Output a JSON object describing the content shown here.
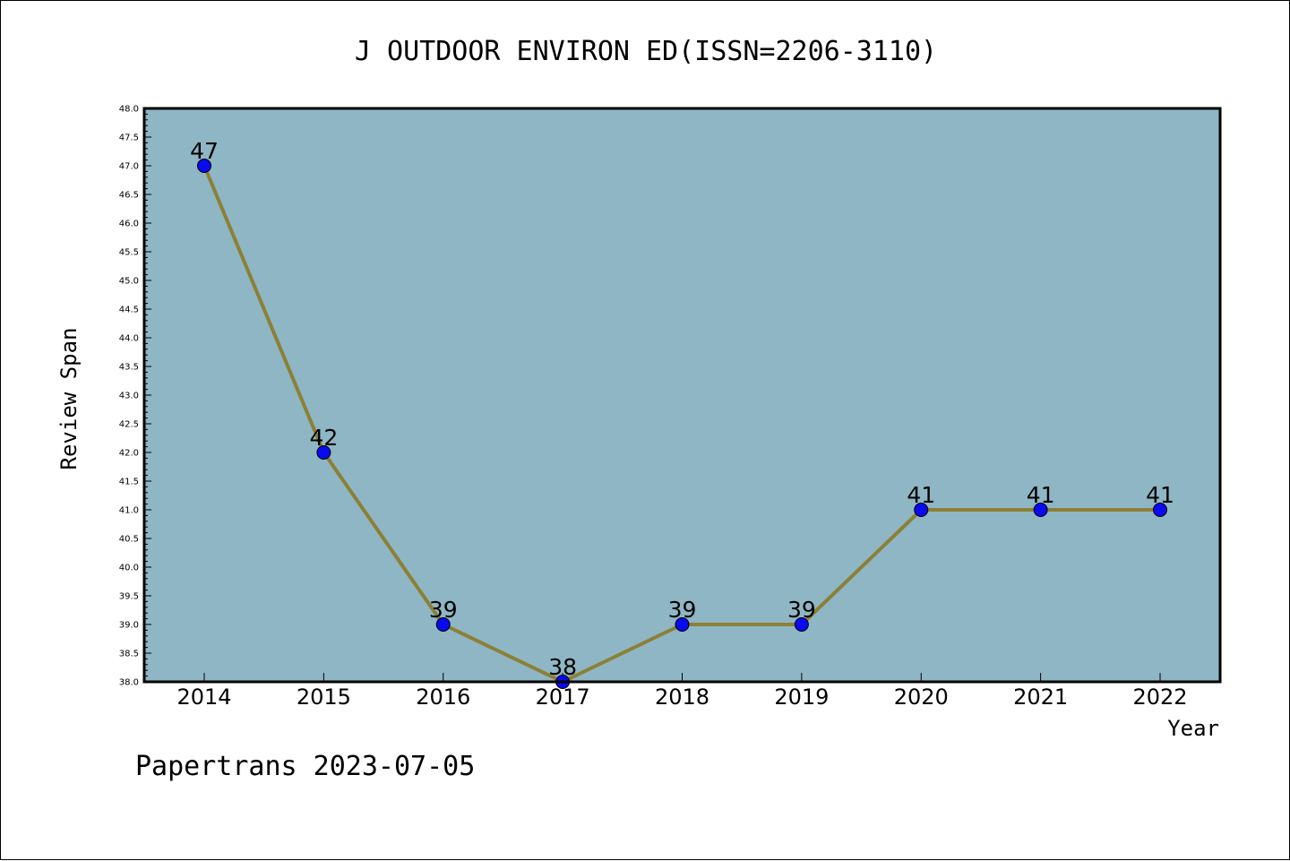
{
  "chart_data": {
    "type": "line",
    "title": "J OUTDOOR ENVIRON ED(ISSN=2206-3110)",
    "xlabel": "Year",
    "ylabel": "Review Span",
    "categories": [
      "2014",
      "2015",
      "2016",
      "2017",
      "2018",
      "2019",
      "2020",
      "2021",
      "2022"
    ],
    "series": [
      {
        "values": [
          47,
          42,
          39,
          38,
          39,
          39,
          41,
          41,
          41
        ]
      }
    ],
    "data_labels": [
      "47",
      "42",
      "39",
      "38",
      "39",
      "39",
      "41",
      "41",
      "41"
    ],
    "ylim": [
      38.0,
      48.0
    ],
    "yticks": [
      "38.0",
      "38.5",
      "39.0",
      "39.5",
      "40.0",
      "40.5",
      "41.0",
      "41.5",
      "42.0",
      "42.5",
      "43.0",
      "43.5",
      "44.0",
      "44.5",
      "45.0",
      "45.5",
      "46.0",
      "46.5",
      "47.0",
      "47.5",
      "48.0"
    ],
    "grid": false,
    "colors": {
      "plot_background": "#8fb6c5",
      "line": "#8b8036",
      "marker": "#0a0aee"
    }
  },
  "footer": {
    "text": "Papertrans 2023-07-05"
  }
}
